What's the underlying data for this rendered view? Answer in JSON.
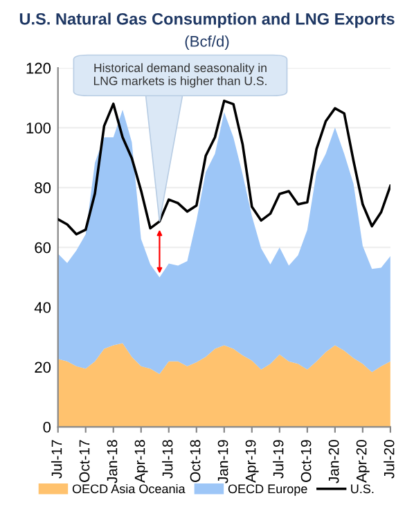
{
  "chart_data": {
    "type": "area",
    "title": "U.S. Natural Gas Consumption and LNG Exports",
    "subtitle": "(Bcf/d)",
    "stacked": true,
    "x": [
      "2017-07",
      "2017-08",
      "2017-09",
      "2017-10",
      "2017-11",
      "2017-12",
      "2018-01",
      "2018-02",
      "2018-03",
      "2018-04",
      "2018-05",
      "2018-06",
      "2018-07",
      "2018-08",
      "2018-09",
      "2018-10",
      "2018-11",
      "2018-12",
      "2019-01",
      "2019-02",
      "2019-03",
      "2019-04",
      "2019-05",
      "2019-06",
      "2019-07",
      "2019-08",
      "2019-09",
      "2019-10",
      "2019-11",
      "2019-12",
      "2020-01",
      "2020-02",
      "2020-03",
      "2020-04",
      "2020-05",
      "2020-06",
      "2020-07"
    ],
    "series": [
      {
        "name": "OECD Asia Oceania",
        "color": "#ffc26e",
        "values": [
          22.7,
          21.9,
          20.3,
          19.5,
          21.9,
          26.1,
          27.3,
          28,
          23.4,
          20.3,
          19.5,
          17.7,
          21.9,
          21.9,
          20.3,
          21.6,
          23.4,
          26.1,
          27.3,
          26.1,
          23.9,
          22.2,
          19.2,
          21.1,
          24.2,
          21.9,
          21.1,
          19.2,
          21.9,
          25,
          27.3,
          25.5,
          23,
          21.1,
          18.3,
          20.3,
          21.9
        ]
      },
      {
        "name": "OECD Europe",
        "color": "#9dc6f7",
        "values": [
          35.2,
          32.9,
          38.7,
          44.9,
          66.4,
          70.7,
          69.5,
          78,
          71.8,
          42.5,
          34.8,
          32.3,
          32.7,
          32,
          35.1,
          47.4,
          61.8,
          65.2,
          77.9,
          70.7,
          60.5,
          48.3,
          40.5,
          33.2,
          35.8,
          32,
          36.3,
          46.7,
          63.3,
          66.3,
          72.8,
          65.8,
          58.3,
          39.4,
          34.5,
          32.9,
          35.2
        ]
      },
      {
        "name": "U.S.",
        "type": "line",
        "color": "#000000",
        "values": [
          69.4,
          67.7,
          64.4,
          65.9,
          78,
          100.6,
          108,
          96.8,
          89.8,
          79,
          66.4,
          68.7,
          76,
          74.8,
          72,
          74,
          90.6,
          96.8,
          109,
          107.9,
          94.4,
          73.6,
          69,
          71.3,
          77.9,
          78.8,
          74.4,
          75.1,
          92.9,
          102.2,
          106.5,
          104.8,
          89,
          74.4,
          67.1,
          71.8,
          80.6
        ]
      }
    ],
    "xlim": [
      "2017-07",
      "2020-07"
    ],
    "xticks": [
      {
        "value": "2017-07",
        "label": "Jul-17"
      },
      {
        "value": "2017-10",
        "label": "Oct-17"
      },
      {
        "value": "2018-01",
        "label": "Jan-18"
      },
      {
        "value": "2018-04",
        "label": "Apr-18"
      },
      {
        "value": "2018-07",
        "label": "Jul-18"
      },
      {
        "value": "2018-10",
        "label": "Oct-18"
      },
      {
        "value": "2019-01",
        "label": "Jan-19"
      },
      {
        "value": "2019-04",
        "label": "Apr-19"
      },
      {
        "value": "2019-07",
        "label": "Jul-19"
      },
      {
        "value": "2019-10",
        "label": "Oct-19"
      },
      {
        "value": "2020-01",
        "label": "Jan-20"
      },
      {
        "value": "2020-04",
        "label": "Apr-20"
      },
      {
        "value": "2020-07",
        "label": "Jul-20"
      }
    ],
    "ylim": [
      0,
      120
    ],
    "yticks": [
      0,
      20,
      40,
      60,
      80,
      100,
      120
    ],
    "grid": "y",
    "legend": "bottom",
    "annotations": [
      {
        "text": "Historical demand seasonality in LNG markets is higher than U.S.",
        "x": "2018-06",
        "y": 68.7
      }
    ]
  }
}
